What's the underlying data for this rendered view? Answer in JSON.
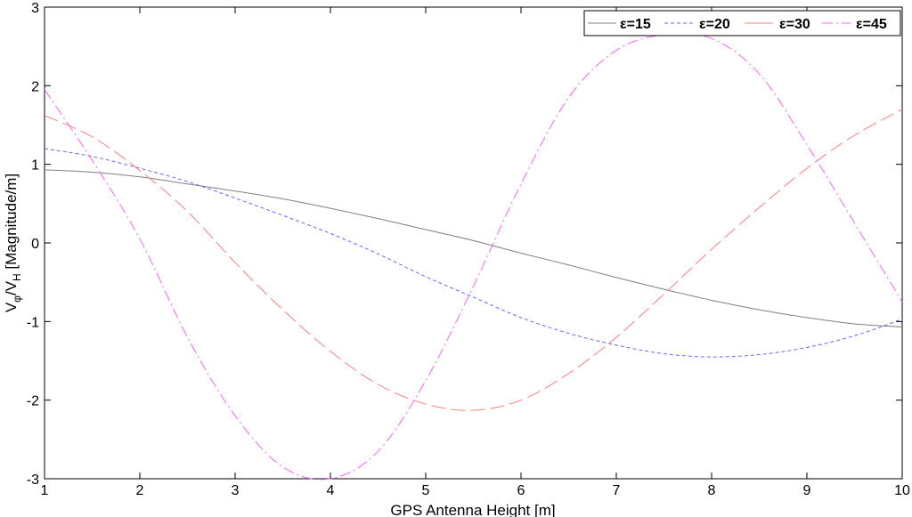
{
  "chart_data": {
    "type": "line",
    "title": "",
    "xlabel": "GPS Antenna Height [m]",
    "ylabel": {
      "base": "V",
      "sub1": "φ",
      "mid": "/V",
      "sub2": "H",
      "tail": " [Magnitude/m]"
    },
    "xlim": [
      1,
      10
    ],
    "ylim": [
      -3,
      3
    ],
    "xticks": [
      "1",
      "2",
      "3",
      "4",
      "5",
      "6",
      "7",
      "8",
      "9",
      "10"
    ],
    "yticks": [
      "-3",
      "-2",
      "-1",
      "0",
      "1",
      "2",
      "3"
    ],
    "grid": false,
    "legend_position": "top-right",
    "series": [
      {
        "name": "ε=15",
        "color": "#7f7f7f",
        "dash": "solid",
        "x": [
          1,
          1.5,
          2,
          2.5,
          3,
          3.5,
          4,
          4.5,
          5,
          5.5,
          6,
          6.5,
          7,
          7.5,
          8,
          8.5,
          9,
          9.5,
          10
        ],
        "y": [
          0.93,
          0.9,
          0.84,
          0.75,
          0.66,
          0.56,
          0.44,
          0.31,
          0.17,
          0.03,
          -0.13,
          -0.28,
          -0.44,
          -0.59,
          -0.73,
          -0.85,
          -0.95,
          -1.03,
          -1.07
        ]
      },
      {
        "name": "ε=20",
        "color": "#6666ff",
        "dash": "dashed",
        "x": [
          1,
          1.5,
          2,
          2.5,
          3,
          3.5,
          4,
          4.5,
          5,
          5.5,
          6,
          6.5,
          7,
          7.5,
          8,
          8.5,
          9,
          9.5,
          10
        ],
        "y": [
          1.2,
          1.1,
          0.95,
          0.78,
          0.57,
          0.35,
          0.12,
          -0.14,
          -0.43,
          -0.69,
          -0.95,
          -1.15,
          -1.3,
          -1.41,
          -1.45,
          -1.42,
          -1.33,
          -1.18,
          -0.97
        ]
      },
      {
        "name": "ε=30",
        "color": "#ff8080",
        "dash": "longdash",
        "x": [
          1,
          1.5,
          2,
          2.5,
          3,
          3.5,
          4,
          4.5,
          5,
          5.5,
          6,
          6.5,
          7,
          7.5,
          8,
          8.5,
          9,
          9.5,
          10
        ],
        "y": [
          1.62,
          1.35,
          0.92,
          0.4,
          -0.25,
          -0.85,
          -1.38,
          -1.8,
          -2.05,
          -2.13,
          -2.0,
          -1.66,
          -1.2,
          -0.65,
          -0.08,
          0.45,
          0.95,
          1.37,
          1.7
        ]
      },
      {
        "name": "ε=45",
        "color": "#ff66ff",
        "dash": "dashdot",
        "x": [
          1,
          1.5,
          2,
          2.5,
          3,
          3.5,
          4,
          4.5,
          5,
          5.5,
          6,
          6.5,
          7,
          7.5,
          8,
          8.5,
          9,
          9.5,
          10
        ],
        "y": [
          1.95,
          1.05,
          0.05,
          -1.2,
          -2.2,
          -2.85,
          -3.0,
          -2.65,
          -1.75,
          -0.55,
          0.75,
          1.85,
          2.45,
          2.65,
          2.6,
          2.15,
          1.25,
          0.25,
          -0.75
        ]
      }
    ]
  }
}
